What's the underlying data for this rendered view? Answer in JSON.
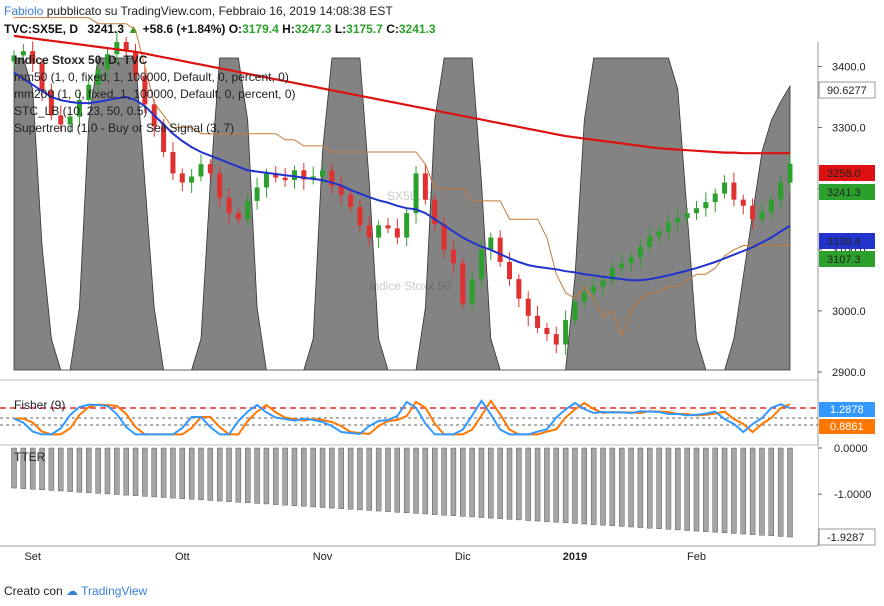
{
  "header": {
    "user": "Fabiolo",
    "published": "pubblicato su TradingView.com, Febbraio 16, 2019 14:08:38 EST",
    "symbol": "TVC:SX5E, D",
    "last": "3241.3",
    "change": "+58.6 (+1.84%)",
    "o_label": "O:",
    "o": "3179.4",
    "h_label": "H:",
    "h": "3247.3",
    "l_label": "L:",
    "l": "3175.7",
    "c_label": "C:",
    "c": "3241.3"
  },
  "legend": [
    "Indice Stoxx 50, D, TVC",
    "mm50 (1, 0, fixed, 1, 100000, Default, 0, percent, 0)",
    "mm200 (1, 0, fixed, 1, 100000, Default, 0, percent, 0)",
    "STC_LB (10, 23, 50, 0.5)",
    "Supertrend (1.0 - Buy or Sell Signal (3, 7)"
  ],
  "watermark": {
    "symbol": "SX5E, D",
    "name": "Indice Stoxx 50"
  },
  "fisher_label": "Fisher (9)",
  "tter_label": "TTER",
  "footer": {
    "created": "Creato con",
    "brand": "TradingView"
  },
  "colors": {
    "candle_up": "#2ca02c",
    "candle_down": "#e03030",
    "mm50": "#2233cc",
    "mm200": "#dd1111",
    "stc": "#555555",
    "supertrend": "#c87a3a",
    "fisher": "#3399ff",
    "trigger": "#ff7700",
    "tter": "#a5a5a5"
  },
  "chart_data": [
    {
      "type": "candlestick",
      "title": "Indice Stoxx 50, D, TVC",
      "x_ticks": [
        "Set",
        "Ott",
        "Nov",
        "Dic",
        "2019",
        "Feb"
      ],
      "y_ticks": [
        2900,
        3000,
        3100,
        3200,
        3300,
        3400
      ],
      "ylim": [
        2900,
        3440
      ],
      "price_tags": [
        {
          "label": "90.6277",
          "series": "STC_LB"
        },
        {
          "label": "3258.0",
          "series": "mm200"
        },
        {
          "label": "3241.3",
          "series": "price"
        },
        {
          "label": "3139.4",
          "series": "mm50"
        },
        {
          "label": "3107.3",
          "series": "Supertrend"
        }
      ],
      "closes": [
        3418,
        3425,
        3405,
        3360,
        3320,
        3305,
        3318,
        3345,
        3370,
        3395,
        3420,
        3440,
        3425,
        3385,
        3338,
        3302,
        3260,
        3225,
        3210,
        3220,
        3240,
        3225,
        3185,
        3160,
        3150,
        3180,
        3202,
        3225,
        3218,
        3214,
        3230,
        3215,
        3220,
        3230,
        3205,
        3190,
        3170,
        3140,
        3120,
        3140,
        3135,
        3120,
        3160,
        3225,
        3182,
        3142,
        3100,
        3078,
        3012,
        3052,
        3100,
        3120,
        3080,
        3052,
        3020,
        2992,
        2972,
        2962,
        2945,
        2985,
        3015,
        3030,
        3040,
        3050,
        3070,
        3078,
        3088,
        3105,
        3122,
        3130,
        3145,
        3152,
        3160,
        3168,
        3178,
        3192,
        3210,
        3182,
        3172,
        3150,
        3162,
        3182,
        3210,
        3241
      ],
      "mm50": [
        3390,
        3380,
        3370,
        3360,
        3350,
        3345,
        3342,
        3340,
        3340,
        3342,
        3345,
        3348,
        3350,
        3345,
        3335,
        3320,
        3305,
        3290,
        3278,
        3268,
        3260,
        3254,
        3248,
        3242,
        3236,
        3230,
        3228,
        3226,
        3224,
        3222,
        3220,
        3218,
        3216,
        3214,
        3210,
        3205,
        3198,
        3192,
        3186,
        3181,
        3177,
        3172,
        3168,
        3166,
        3160,
        3150,
        3140,
        3130,
        3120,
        3112,
        3105,
        3100,
        3093,
        3086,
        3080,
        3075,
        3072,
        3070,
        3068,
        3065,
        3063,
        3060,
        3058,
        3056,
        3054,
        3052,
        3050,
        3050,
        3052,
        3055,
        3058,
        3062,
        3066,
        3070,
        3075,
        3080,
        3086,
        3092,
        3098,
        3104,
        3112,
        3120,
        3130,
        3139
      ],
      "mm200": [
        3450,
        3448,
        3446,
        3444,
        3442,
        3440,
        3438,
        3436,
        3434,
        3432,
        3430,
        3428,
        3426,
        3424,
        3421,
        3418,
        3415,
        3412,
        3409,
        3406,
        3403,
        3400,
        3397,
        3394,
        3391,
        3388,
        3385,
        3382,
        3379,
        3376,
        3373,
        3370,
        3367,
        3364,
        3361,
        3358,
        3355,
        3352,
        3349,
        3346,
        3343,
        3340,
        3337,
        3334,
        3331,
        3328,
        3325,
        3322,
        3319,
        3316,
        3313,
        3310,
        3307,
        3304,
        3301,
        3298,
        3295,
        3292,
        3289,
        3286,
        3284,
        3282,
        3280,
        3278,
        3276,
        3274,
        3272,
        3270,
        3268,
        3266,
        3265,
        3264,
        3263,
        3262,
        3261,
        3260,
        3259,
        3259,
        3258,
        3258,
        3258,
        3258,
        3258,
        3258
      ],
      "supertrend": [
        3480,
        3480,
        3480,
        3480,
        3480,
        3480,
        3480,
        3480,
        3480,
        3470,
        3470,
        3470,
        3470,
        3460,
        3400,
        3340,
        3320,
        3300,
        3300,
        3300,
        3290,
        3290,
        3290,
        3290,
        3290,
        3290,
        3290,
        3290,
        3290,
        3280,
        3280,
        3270,
        3270,
        3270,
        3260,
        3260,
        3260,
        3260,
        3260,
        3260,
        3260,
        3260,
        3260,
        3260,
        3240,
        3200,
        3200,
        3200,
        3200,
        3180,
        3180,
        3180,
        3180,
        3150,
        3150,
        3150,
        3150,
        3120,
        3060,
        3030,
        3020,
        3040,
        3020,
        2990,
        3000,
        2960,
        3000,
        3020,
        3030,
        3030,
        3040,
        3040,
        3050,
        3060,
        3060,
        3070,
        3090,
        3100,
        3107,
        3107,
        3107,
        3107,
        3107,
        3107
      ],
      "stc": [
        100,
        100,
        90,
        40,
        10,
        0,
        0,
        20,
        80,
        100,
        100,
        100,
        100,
        100,
        60,
        20,
        0,
        0,
        0,
        0,
        10,
        60,
        100,
        100,
        100,
        80,
        20,
        0,
        0,
        0,
        0,
        0,
        10,
        70,
        100,
        100,
        100,
        100,
        60,
        10,
        0,
        0,
        0,
        0,
        20,
        80,
        100,
        100,
        100,
        100,
        60,
        10,
        0,
        0,
        0,
        0,
        0,
        0,
        0,
        0,
        30,
        80,
        100,
        100,
        100,
        100,
        100,
        100,
        100,
        100,
        100,
        90,
        50,
        10,
        0,
        0,
        0,
        10,
        30,
        50,
        70,
        80,
        86,
        91
      ]
    },
    {
      "type": "line",
      "title": "Fisher (9)",
      "series": [
        {
          "name": "",
          "role": "fisher",
          "last": 1.2878
        },
        {
          "name": "",
          "role": "trigger",
          "last": 0.8861
        }
      ]
    },
    {
      "type": "bar",
      "title": "TTER",
      "y_ticks": [
        0.0,
        -1.0
      ],
      "last": -1.9287
    }
  ]
}
